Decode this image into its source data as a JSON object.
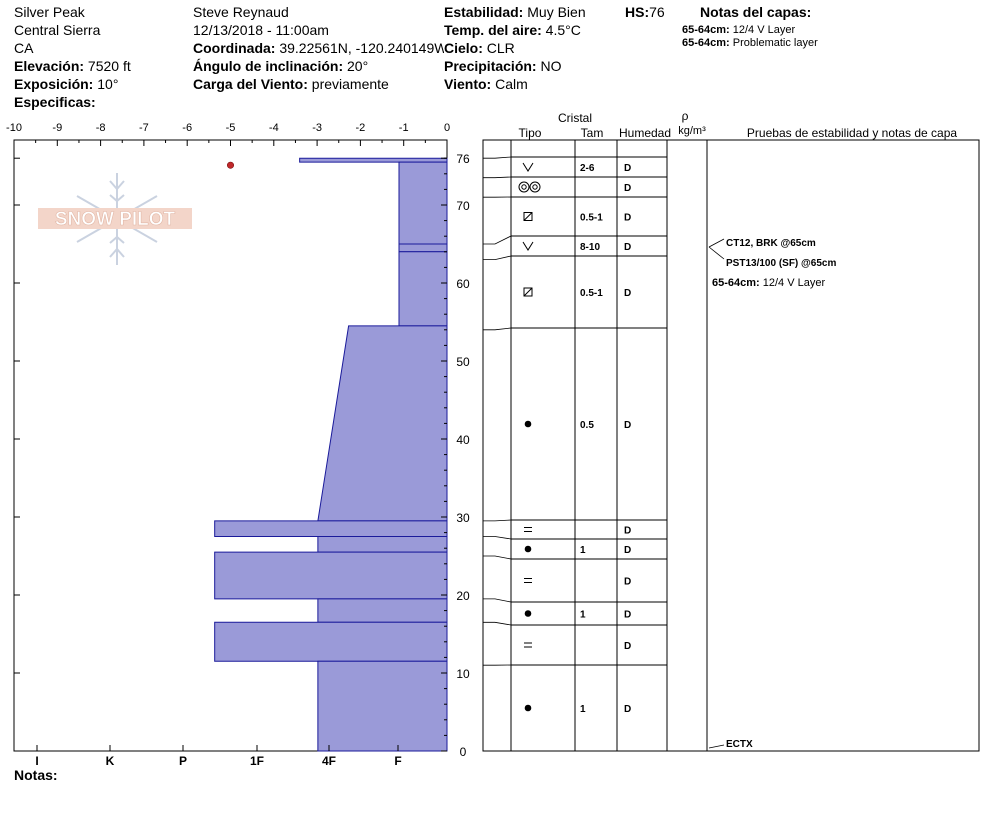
{
  "header": {
    "location": "Silver Peak",
    "range": "Central Sierra",
    "state": "CA",
    "elevation_label": "Elevación:",
    "elevation_value": "7520 ft",
    "aspect_label": "Exposición:",
    "aspect_value": "10°",
    "specifics_label": "Especificas:",
    "observer": "Steve Reynaud",
    "datetime": "12/13/2018 - 11:00am",
    "coord_label": "Coordinada:",
    "coord_value": "39.22561N, -120.240149W",
    "slope_label": "Ángulo de inclinación:",
    "slope_value": "20°",
    "wind_load_label": "Carga del Viento:",
    "wind_load_value": "previamente",
    "stability_label": "Estabilidad:",
    "stability_value": "Muy Bien",
    "air_temp_label": "Temp. del aire:",
    "air_temp_value": "4.5°C",
    "sky_label": "Cielo:",
    "sky_value": "CLR",
    "precip_label": "Precipitación:",
    "precip_value": "NO",
    "wind_label": "Viento:",
    "wind_value": "Calm",
    "hs_label": "HS:",
    "hs_value": "76",
    "layer_notes_title": "Notas del capas:",
    "layer_notes": [
      {
        "range": "65-64cm:",
        "text": "12/4 V Layer"
      },
      {
        "range": "65-64cm:",
        "text": "Problematic layer"
      }
    ]
  },
  "logo_text": "SNOW PILOT",
  "notes_label": "Notas:",
  "chart_data": {
    "type": "snow_profile",
    "temp_axis": {
      "min": -10,
      "max": 0,
      "ticks": [
        -10,
        -9,
        -8,
        -7,
        -6,
        -5,
        -4,
        -3,
        -2,
        -1,
        0
      ]
    },
    "depth_axis": {
      "min": 0,
      "max": 76,
      "ticks": [
        0,
        10,
        20,
        30,
        40,
        50,
        60,
        70,
        76
      ]
    },
    "hardness_scale": [
      "F",
      "4F",
      "1F",
      "P",
      "K",
      "I"
    ],
    "hardness_labels": [
      "I",
      "K",
      "P",
      "1F",
      "4F",
      "F"
    ],
    "hardness_profile": [
      {
        "top": 76,
        "bottom": 75.5,
        "hardness_top": 3.07,
        "hardness_bottom": 3.07
      },
      {
        "top": 75.5,
        "bottom": 65,
        "hardness_top": 1,
        "hardness_bottom": 1
      },
      {
        "top": 65,
        "bottom": 64,
        "hardness_top": 1,
        "hardness_bottom": 1
      },
      {
        "top": 64,
        "bottom": 54.5,
        "hardness_top": 1,
        "hardness_bottom": 1
      },
      {
        "top": 54.5,
        "bottom": 29.5,
        "hardness_top": 2.05,
        "hardness_bottom": 2.69
      },
      {
        "top": 29.5,
        "bottom": 27.5,
        "hardness_top": 4.84,
        "hardness_bottom": 4.84
      },
      {
        "top": 27.5,
        "bottom": 25.5,
        "hardness_top": 2.69,
        "hardness_bottom": 2.69
      },
      {
        "top": 25.5,
        "bottom": 19.5,
        "hardness_top": 4.84,
        "hardness_bottom": 4.84
      },
      {
        "top": 19.5,
        "bottom": 16.5,
        "hardness_top": 2.69,
        "hardness_bottom": 2.69
      },
      {
        "top": 16.5,
        "bottom": 11.5,
        "hardness_top": 4.84,
        "hardness_bottom": 4.84
      },
      {
        "top": 11.5,
        "bottom": 0,
        "hardness_top": 2.69,
        "hardness_bottom": 2.69
      }
    ],
    "temperature_points": [
      {
        "temp": -5,
        "depth": 76
      }
    ],
    "column_headers": {
      "crystal": "Cristal",
      "type": "Tipo",
      "size": "Tam",
      "moisture": "Humedad",
      "rho": "ρ",
      "rho_unit": "kg/m³",
      "tests": "Pruebas de estabilidad y notas de capa"
    },
    "layers": [
      {
        "top": 76,
        "bottom": 73.5,
        "type": "precip",
        "size": "2-6",
        "moisture": "D"
      },
      {
        "top": 73.5,
        "bottom": 71,
        "type": "round-double",
        "size": "",
        "moisture": "D"
      },
      {
        "top": 71,
        "bottom": 65,
        "type": "faceted-round",
        "size": "0.5-1",
        "moisture": "D"
      },
      {
        "top": 65,
        "bottom": 63,
        "type": "precip",
        "size": "8-10",
        "moisture": "D"
      },
      {
        "top": 63,
        "bottom": 54,
        "type": "faceted-round",
        "size": "0.5-1",
        "moisture": "D"
      },
      {
        "top": 54,
        "bottom": 29.5,
        "type": "round",
        "size": "0.5",
        "moisture": "D"
      },
      {
        "top": 29.5,
        "bottom": 27.5,
        "type": "crust",
        "size": "",
        "moisture": "D"
      },
      {
        "top": 27.5,
        "bottom": 25,
        "type": "round",
        "size": "1",
        "moisture": "D"
      },
      {
        "top": 25,
        "bottom": 19.5,
        "type": "crust",
        "size": "",
        "moisture": "D"
      },
      {
        "top": 19.5,
        "bottom": 16.5,
        "type": "round",
        "size": "1",
        "moisture": "D"
      },
      {
        "top": 16.5,
        "bottom": 11,
        "type": "crust",
        "size": "",
        "moisture": "D"
      },
      {
        "top": 11,
        "bottom": 0,
        "type": "round",
        "size": "1",
        "moisture": "D"
      }
    ],
    "test_notes": [
      {
        "depth": 65,
        "text": "CT12, BRK @65cm"
      },
      {
        "depth": 65,
        "text": "PST13/100 (SF) @65cm"
      },
      {
        "depth": 0,
        "text": "ECTX"
      }
    ],
    "layer_note": {
      "range": "65-64cm:",
      "text": "12/4 V Layer"
    }
  }
}
